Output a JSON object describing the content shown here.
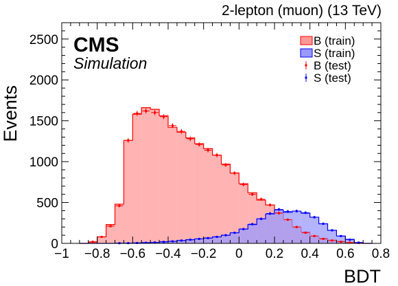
{
  "chart_data": {
    "type": "histogram",
    "title": "2-lepton (muon) (13 TeV)",
    "experiment": "CMS",
    "subtitle": "Simulation",
    "xlabel": "BDT",
    "ylabel": "Events",
    "xlim": [
      -1,
      0.8
    ],
    "ylim": [
      0,
      2700
    ],
    "xticks": [
      "-1",
      "-0.8",
      "-0.6",
      "-0.4",
      "-0.2",
      "0",
      "0.2",
      "0.4",
      "0.6",
      "0.8"
    ],
    "yticks": [
      "0",
      "500",
      "1000",
      "1500",
      "2000",
      "2500"
    ],
    "legend_position": "top-right",
    "legend": [
      "B (train)",
      "S (train)",
      "B (test)",
      "S (test)"
    ],
    "bin_edges": [
      -0.9,
      -0.85,
      -0.8,
      -0.75,
      -0.7,
      -0.65,
      -0.6,
      -0.55,
      -0.5,
      -0.45,
      -0.4,
      -0.35,
      -0.3,
      -0.25,
      -0.2,
      -0.15,
      -0.1,
      -0.05,
      0,
      0.05,
      0.1,
      0.15,
      0.2,
      0.25,
      0.3,
      0.35,
      0.4,
      0.45,
      0.5,
      0.55,
      0.6,
      0.65,
      0.7,
      0.75
    ],
    "series": [
      {
        "name": "B (train)",
        "style": "hist-fill",
        "color": "#ff0000",
        "fill": "#ff9999",
        "values": [
          0,
          15,
          80,
          230,
          480,
          1260,
          1580,
          1660,
          1640,
          1560,
          1420,
          1360,
          1290,
          1220,
          1160,
          1080,
          970,
          860,
          730,
          620,
          530,
          470,
          380,
          290,
          200,
          140,
          90,
          60,
          40,
          25,
          10,
          5,
          0
        ]
      },
      {
        "name": "S (train)",
        "style": "hist-fill",
        "color": "#0000ff",
        "fill": "#9999ff",
        "values": [
          0,
          0,
          0,
          0,
          2,
          3,
          5,
          10,
          12,
          20,
          25,
          35,
          45,
          55,
          65,
          80,
          100,
          130,
          175,
          230,
          300,
          360,
          410,
          380,
          395,
          370,
          320,
          240,
          160,
          90,
          50,
          10,
          0
        ]
      },
      {
        "name": "B (test)",
        "style": "markers",
        "color": "#ff0000",
        "values": [
          0,
          20,
          80,
          210,
          460,
          1260,
          1590,
          1620,
          1600,
          1550,
          1440,
          1370,
          1280,
          1210,
          1140,
          1080,
          960,
          860,
          720,
          600,
          540,
          470,
          370,
          290,
          200,
          130,
          90,
          55,
          35,
          20,
          10,
          5,
          0
        ]
      },
      {
        "name": "S (test)",
        "style": "markers",
        "color": "#0000ff",
        "values": [
          0,
          0,
          0,
          0,
          2,
          3,
          5,
          8,
          12,
          18,
          25,
          35,
          45,
          55,
          65,
          80,
          100,
          130,
          175,
          235,
          300,
          365,
          415,
          390,
          395,
          375,
          320,
          240,
          160,
          90,
          45,
          10,
          0
        ]
      }
    ]
  }
}
